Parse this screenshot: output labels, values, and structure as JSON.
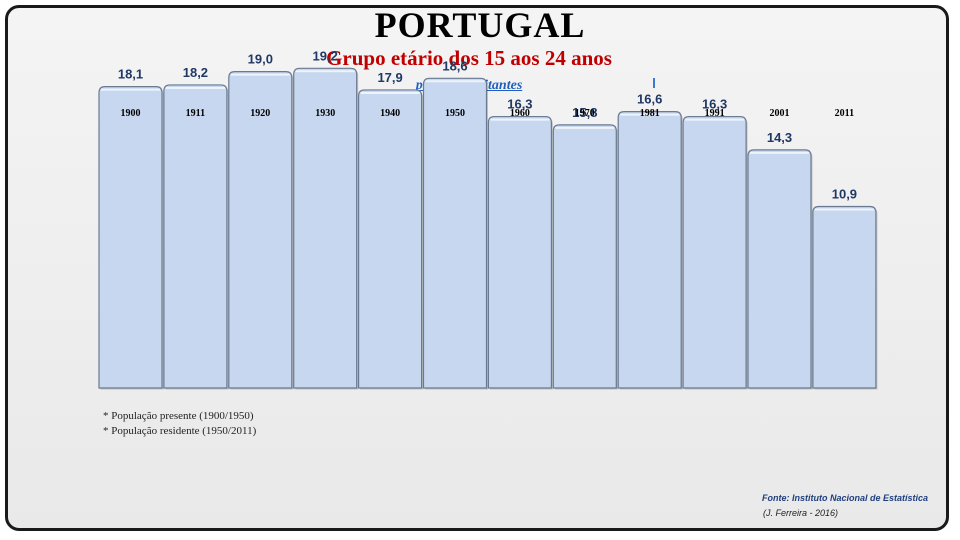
{
  "title": "PORTUGAL",
  "subtitle": "Grupo etário dos 15 aos 24 anos",
  "unit": "per 100 habitantes",
  "notes": [
    "* População presente (1900/1950)",
    "* População residente (1950/2011)"
  ],
  "source": "Fonte: Instituto Nacional de Estatística",
  "author": "(J. Ferreira - 2016)",
  "colors": {
    "bar_fill": "#c6d7ef",
    "bar_stroke": "#6b7a90",
    "value_text": "#1f3864",
    "title": "#000000",
    "subtitle": "#c00000",
    "unit": "#1f5fbf"
  },
  "chart_data": {
    "type": "bar",
    "categories": [
      "1900",
      "1911",
      "1920",
      "1930",
      "1940",
      "1950",
      "1960",
      "1970",
      "1981",
      "1991",
      "2001",
      "2011"
    ],
    "values": [
      18.1,
      18.2,
      19.0,
      19.2,
      17.9,
      18.6,
      16.3,
      15.8,
      16.6,
      16.3,
      14.3,
      10.9
    ],
    "value_labels": [
      "18,1",
      "18,2",
      "19,0",
      "19,2",
      "17,9",
      "18,6",
      "16,3",
      "15,8",
      "16,6",
      "16,3",
      "14,3",
      "10,9"
    ],
    "title": "",
    "xlabel": "",
    "ylabel": "",
    "ylim": [
      0,
      21.5
    ],
    "grid": false,
    "legend": "none",
    "category_labels_position": "top"
  }
}
